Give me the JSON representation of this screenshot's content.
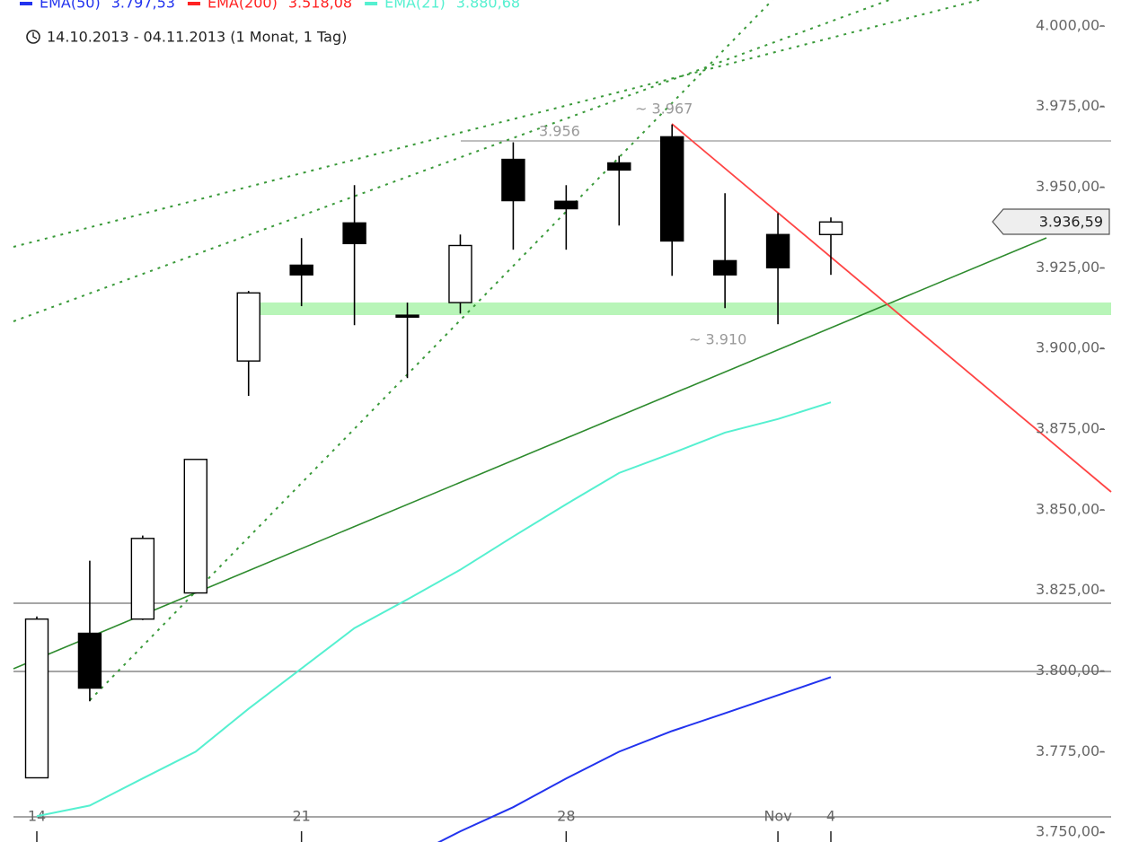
{
  "chart_data": {
    "type": "candlestick",
    "subtitle": "14.10.2013 - 04.11.2013 (1 Monat, 1 Tag)",
    "categories": [
      "14",
      null,
      null,
      null,
      null,
      "21",
      null,
      null,
      null,
      null,
      "28",
      null,
      null,
      null,
      "Nov",
      "4"
    ],
    "open": [
      3766.9,
      3811.7,
      3816.1,
      3824.2,
      3896.1,
      3925.8,
      3938.9,
      3910.3,
      3914.2,
      3958.6,
      3945.6,
      3957.5,
      3965.6,
      3927.2,
      3935.3,
      3935.3
    ],
    "high": [
      3816.9,
      3834.2,
      3842.0,
      3865.6,
      3917.8,
      3934.2,
      3950.6,
      3914.2,
      3935.3,
      3963.9,
      3950.6,
      3959.7,
      3969.4,
      3948.1,
      3941.9,
      3940.6
    ],
    "low": [
      3766.9,
      3790.6,
      3815.8,
      3824.0,
      3885.3,
      3913.1,
      3907.2,
      3890.8,
      3910.8,
      3930.6,
      3930.6,
      3938.1,
      3922.5,
      3912.5,
      3907.5,
      3922.8
    ],
    "close": [
      3816.1,
      3794.7,
      3841.1,
      3865.6,
      3917.2,
      3922.8,
      3932.5,
      3909.7,
      3931.9,
      3945.8,
      3943.3,
      3955.3,
      3933.3,
      3922.8,
      3925.0,
      3939.2
    ],
    "series": [
      {
        "name": "EMA(50)",
        "color": "#2233ee",
        "value_label": "3.797,53",
        "values": [
          null,
          null,
          null,
          null,
          null,
          null,
          null,
          3742.0,
          3750.3,
          3757.8,
          3766.7,
          3775.0,
          3781.4,
          3786.9,
          3792.5,
          3798.1
        ]
      },
      {
        "name": "EMA(200)",
        "color": "#ff2222",
        "value_label": "3.518,08",
        "values": [
          null,
          null,
          null,
          null,
          null,
          null,
          null,
          null,
          null,
          null,
          null,
          null,
          null,
          null,
          null,
          null
        ]
      },
      {
        "name": "EMA(21)",
        "color": "#55f0d0",
        "value_label": "3.880,68",
        "values": [
          3755.0,
          3758.3,
          3766.7,
          3775.0,
          3788.3,
          3800.8,
          3813.3,
          3822.2,
          3831.4,
          3841.7,
          3851.7,
          3861.4,
          3867.5,
          3873.9,
          3878.1,
          3883.3
        ]
      }
    ],
    "annotations": [
      "~ 3.967",
      "3.956",
      "~ 3.910"
    ],
    "last_price_label": "3.936,59",
    "ylim": [
      3747,
      4008
    ],
    "yticks": [
      {
        "value": 3750,
        "label": "3.750,00-"
      },
      {
        "value": 3775,
        "label": "3.775,00-"
      },
      {
        "value": 3800,
        "label": "3.800,00-"
      },
      {
        "value": 3825,
        "label": "3.825,00-"
      },
      {
        "value": 3850,
        "label": "3.850,00-"
      },
      {
        "value": 3875,
        "label": "3.875,00-"
      },
      {
        "value": 3900,
        "label": "3.900,00-"
      },
      {
        "value": 3925,
        "label": "3.925,00-"
      },
      {
        "value": 3950,
        "label": "3.950,00-"
      },
      {
        "value": 3975,
        "label": "3.975,00-"
      },
      {
        "value": 4000,
        "label": "4.000,00-"
      }
    ],
    "grid": false
  }
}
